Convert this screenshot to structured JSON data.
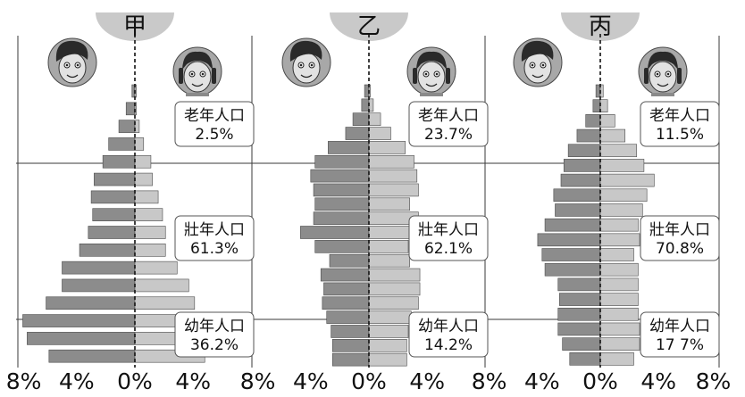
{
  "chart_data": [
    {
      "type": "bar",
      "orientation": "horizontal-pyramid",
      "title": "甲",
      "x_ticks": [
        "8%",
        "4%",
        "0%",
        "4%"
      ],
      "bands": [
        {
          "name": "老年人口",
          "value": "2.5%"
        },
        {
          "name": "壯年人口",
          "value": "61.3%"
        },
        {
          "name": "幼年人口",
          "value": "36.2%"
        }
      ],
      "male": [
        5.9,
        7.4,
        7.7,
        6.1,
        5.0,
        5.0,
        3.8,
        3.2,
        2.9,
        3.0,
        2.8,
        2.2,
        1.8,
        1.1,
        0.6,
        0.2
      ],
      "female": [
        4.8,
        3.8,
        3.8,
        4.1,
        3.7,
        2.9,
        2.1,
        2.1,
        1.9,
        1.6,
        1.2,
        1.1,
        0.6,
        0.3,
        0.1,
        0.1
      ]
    },
    {
      "type": "bar",
      "orientation": "horizontal-pyramid",
      "title": "乙",
      "x_ticks": [
        "8%",
        "4%",
        "0%",
        "4%"
      ],
      "bands": [
        {
          "name": "老年人口",
          "value": "23.7%"
        },
        {
          "name": "壯年人口",
          "value": "62.1%"
        },
        {
          "name": "幼年人口",
          "value": "14.2%"
        }
      ],
      "male": [
        2.5,
        2.5,
        2.6,
        2.9,
        3.2,
        3.1,
        3.3,
        2.7,
        3.7,
        4.7,
        3.8,
        3.7,
        3.8,
        4.0,
        3.7,
        2.8,
        1.6,
        1.1,
        0.5,
        0.3
      ],
      "female": [
        2.6,
        2.6,
        2.7,
        2.9,
        3.4,
        3.5,
        3.5,
        2.8,
        2.7,
        3.4,
        3.4,
        2.8,
        3.4,
        3.3,
        3.1,
        2.5,
        1.5,
        0.8,
        0.3,
        0.1
      ]
    },
    {
      "type": "bar",
      "orientation": "horizontal-pyramid",
      "title": "丙",
      "x_ticks": [
        "8%",
        "4%",
        "0%",
        "4%",
        "8%"
      ],
      "bands": [
        {
          "name": "老年人口",
          "value": "11.5%"
        },
        {
          "name": "壯年人口",
          "value": "70.8%"
        },
        {
          "name": "幼年人口",
          "value": "17 7%"
        }
      ],
      "male": [
        2.1,
        2.6,
        2.9,
        2.9,
        2.8,
        2.9,
        3.8,
        4.0,
        4.3,
        3.8,
        3.1,
        3.2,
        2.7,
        2.5,
        2.2,
        1.6,
        1.0,
        0.5,
        0.3
      ],
      "female": [
        2.3,
        2.7,
        2.7,
        2.6,
        2.6,
        2.6,
        2.6,
        2.3,
        2.7,
        2.6,
        2.9,
        3.2,
        3.7,
        3.0,
        2.5,
        1.7,
        1.0,
        0.5,
        0.2
      ]
    }
  ],
  "icons": {
    "male": "boy-face-icon",
    "female": "girl-face-icon"
  },
  "colors": {
    "male_bar": "#8c8c8c",
    "female_bar": "#c8c8c8",
    "title_tab": "#c9c9c9",
    "bar_edge": "#4a4a4a"
  }
}
